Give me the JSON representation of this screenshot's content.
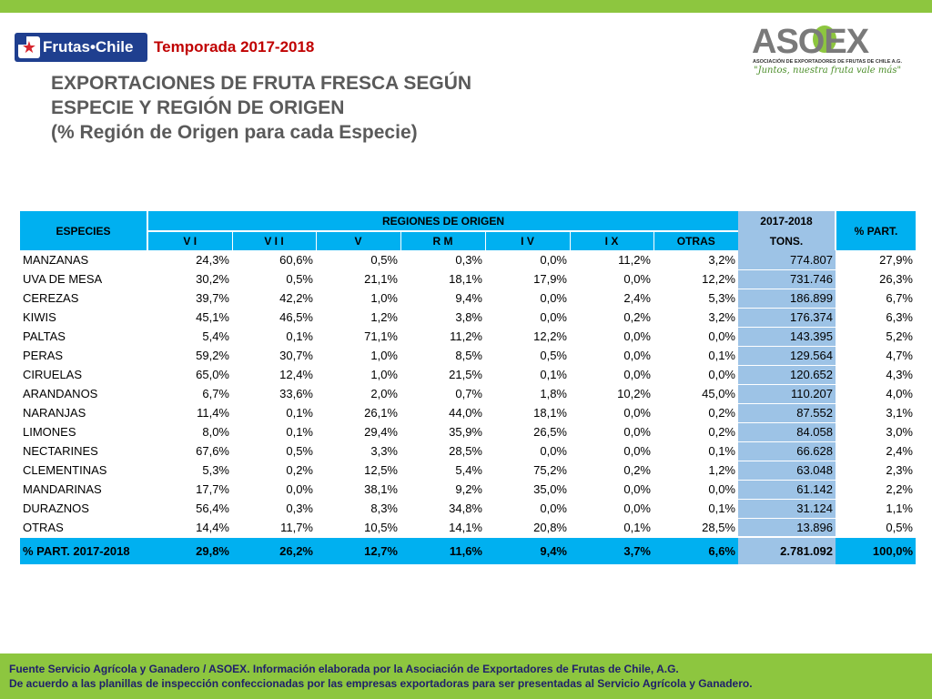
{
  "header": {
    "brand_logo_text": "Frutas de Chile",
    "brand_logo_display": "Frutas•Chile",
    "season": "Temporada 2017-2018",
    "asoex_name": "ASOEX",
    "asoex_subtitle": "ASOCIACIÓN DE EXPORTADORES DE FRUTAS DE CHILE A.G.",
    "asoex_slogan": "\"Juntos, nuestra fruta vale más\""
  },
  "title": {
    "line1": "EXPORTACIONES DE FRUTA FRESCA SEGÚN",
    "line2": "ESPECIE Y REGIÓN DE ORIGEN",
    "line3": "(% Región de Origen para cada Especie)"
  },
  "table": {
    "species_header": "ESPECIES",
    "regions_header": "REGIONES DE ORIGEN",
    "year_header": "2017-2018",
    "tons_header": "TONS.",
    "part_header": "% PART.",
    "region_columns": [
      "V I",
      "V I I",
      "V",
      "R M",
      "I V",
      "I X",
      "OTRAS"
    ],
    "rows": [
      {
        "species": "MANZANAS",
        "values": [
          "24,3%",
          "60,6%",
          "0,5%",
          "0,3%",
          "0,0%",
          "11,2%",
          "3,2%"
        ],
        "tons": "774.807",
        "part": "27,9%"
      },
      {
        "species": "UVA DE MESA",
        "values": [
          "30,2%",
          "0,5%",
          "21,1%",
          "18,1%",
          "17,9%",
          "0,0%",
          "12,2%"
        ],
        "tons": "731.746",
        "part": "26,3%"
      },
      {
        "species": "CEREZAS",
        "values": [
          "39,7%",
          "42,2%",
          "1,0%",
          "9,4%",
          "0,0%",
          "2,4%",
          "5,3%"
        ],
        "tons": "186.899",
        "part": "6,7%"
      },
      {
        "species": "KIWIS",
        "values": [
          "45,1%",
          "46,5%",
          "1,2%",
          "3,8%",
          "0,0%",
          "0,2%",
          "3,2%"
        ],
        "tons": "176.374",
        "part": "6,3%"
      },
      {
        "species": "PALTAS",
        "values": [
          "5,4%",
          "0,1%",
          "71,1%",
          "11,2%",
          "12,2%",
          "0,0%",
          "0,0%"
        ],
        "tons": "143.395",
        "part": "5,2%"
      },
      {
        "species": "PERAS",
        "values": [
          "59,2%",
          "30,7%",
          "1,0%",
          "8,5%",
          "0,5%",
          "0,0%",
          "0,1%"
        ],
        "tons": "129.564",
        "part": "4,7%"
      },
      {
        "species": "CIRUELAS",
        "values": [
          "65,0%",
          "12,4%",
          "1,0%",
          "21,5%",
          "0,1%",
          "0,0%",
          "0,0%"
        ],
        "tons": "120.652",
        "part": "4,3%"
      },
      {
        "species": "ARANDANOS",
        "values": [
          "6,7%",
          "33,6%",
          "2,0%",
          "0,7%",
          "1,8%",
          "10,2%",
          "45,0%"
        ],
        "tons": "110.207",
        "part": "4,0%"
      },
      {
        "species": "NARANJAS",
        "values": [
          "11,4%",
          "0,1%",
          "26,1%",
          "44,0%",
          "18,1%",
          "0,0%",
          "0,2%"
        ],
        "tons": "87.552",
        "part": "3,1%"
      },
      {
        "species": "LIMONES",
        "values": [
          "8,0%",
          "0,1%",
          "29,4%",
          "35,9%",
          "26,5%",
          "0,0%",
          "0,2%"
        ],
        "tons": "84.058",
        "part": "3,0%"
      },
      {
        "species": "NECTARINES",
        "values": [
          "67,6%",
          "0,5%",
          "3,3%",
          "28,5%",
          "0,0%",
          "0,0%",
          "0,1%"
        ],
        "tons": "66.628",
        "part": "2,4%"
      },
      {
        "species": "CLEMENTINAS",
        "values": [
          "5,3%",
          "0,2%",
          "12,5%",
          "5,4%",
          "75,2%",
          "0,2%",
          "1,2%"
        ],
        "tons": "63.048",
        "part": "2,3%"
      },
      {
        "species": "MANDARINAS",
        "values": [
          "17,7%",
          "0,0%",
          "38,1%",
          "9,2%",
          "35,0%",
          "0,0%",
          "0,0%"
        ],
        "tons": "61.142",
        "part": "2,2%"
      },
      {
        "species": "DURAZNOS",
        "values": [
          "56,4%",
          "0,3%",
          "8,3%",
          "34,8%",
          "0,0%",
          "0,0%",
          "0,1%"
        ],
        "tons": "31.124",
        "part": "1,1%"
      },
      {
        "species": "OTRAS",
        "values": [
          "14,4%",
          "11,7%",
          "10,5%",
          "14,1%",
          "20,8%",
          "0,1%",
          "28,5%"
        ],
        "tons": "13.896",
        "part": "0,5%"
      }
    ],
    "total": {
      "species": "% PART. 2017-2018",
      "values": [
        "29,8%",
        "26,2%",
        "12,7%",
        "11,6%",
        "9,4%",
        "3,7%",
        "6,6%"
      ],
      "tons": "2.781.092",
      "part": "100,0%"
    }
  },
  "footer": {
    "line1": "Fuente Servicio Agrícola y Ganadero / ASOEX. Información elaborada por la Asociación de Exportadores de  Frutas de Chile, A.G.",
    "line2": "De acuerdo a las planillas de inspección confeccionadas por las empresas exportadoras  para ser presentadas al Servicio Agrícola y Ganadero."
  },
  "colors": {
    "top_bar": "#8dc63f",
    "header_blue": "#00b0f0",
    "tons_column": "#9dc3e6",
    "season_text": "#c00000",
    "title_text": "#5a5a5a",
    "footer_text": "#1f1f6b"
  }
}
